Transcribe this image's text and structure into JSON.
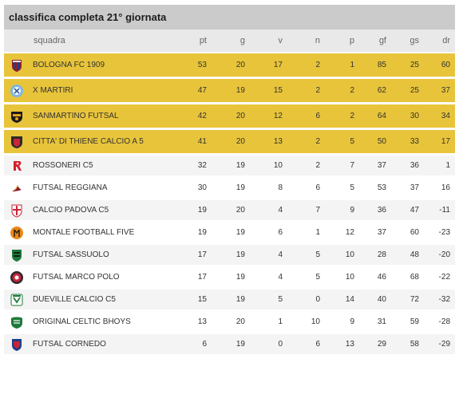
{
  "title": "classifica completa 21° giornata",
  "columns": {
    "squadra": "squadra",
    "pt": "pt",
    "g": "g",
    "v": "v",
    "n": "n",
    "p": "p",
    "gf": "gf",
    "gs": "gs",
    "dr": "dr"
  },
  "colors": {
    "highlight": "#e8c43a",
    "header": "#e9e9e9",
    "title_bar": "#cbcbcb"
  },
  "rows": [
    {
      "team": "BOLOGNA FC 1909",
      "pt": "53",
      "g": "20",
      "v": "17",
      "n": "2",
      "p": "1",
      "gf": "85",
      "gs": "25",
      "dr": "60",
      "logo": "bologna-crest-icon",
      "highlight": true
    },
    {
      "team": "X MARTIRI",
      "pt": "47",
      "g": "19",
      "v": "15",
      "n": "2",
      "p": "2",
      "gf": "62",
      "gs": "25",
      "dr": "37",
      "logo": "x-martiri-crest-icon",
      "highlight": true
    },
    {
      "team": "SANMARTINO FUTSAL",
      "pt": "42",
      "g": "20",
      "v": "12",
      "n": "6",
      "p": "2",
      "gf": "64",
      "gs": "30",
      "dr": "34",
      "logo": "sanmartino-crest-icon",
      "highlight": true
    },
    {
      "team": "CITTA' DI THIENE CALCIO A 5",
      "pt": "41",
      "g": "20",
      "v": "13",
      "n": "2",
      "p": "5",
      "gf": "50",
      "gs": "33",
      "dr": "17",
      "logo": "thiene-crest-icon",
      "highlight": true
    },
    {
      "team": "ROSSONERI C5",
      "pt": "32",
      "g": "19",
      "v": "10",
      "n": "2",
      "p": "7",
      "gf": "37",
      "gs": "36",
      "dr": "1",
      "logo": "rossoneri-crest-icon",
      "highlight": false
    },
    {
      "team": "FUTSAL REGGIANA",
      "pt": "30",
      "g": "19",
      "v": "8",
      "n": "6",
      "p": "5",
      "gf": "53",
      "gs": "37",
      "dr": "16",
      "logo": "reggiana-crest-icon",
      "highlight": false
    },
    {
      "team": "CALCIO PADOVA C5",
      "pt": "19",
      "g": "20",
      "v": "4",
      "n": "7",
      "p": "9",
      "gf": "36",
      "gs": "47",
      "dr": "-11",
      "logo": "padova-crest-icon",
      "highlight": false
    },
    {
      "team": "MONTALE FOOTBALL FIVE",
      "pt": "19",
      "g": "19",
      "v": "6",
      "n": "1",
      "p": "12",
      "gf": "37",
      "gs": "60",
      "dr": "-23",
      "logo": "montale-crest-icon",
      "highlight": false
    },
    {
      "team": "FUTSAL SASSUOLO",
      "pt": "17",
      "g": "19",
      "v": "4",
      "n": "5",
      "p": "10",
      "gf": "28",
      "gs": "48",
      "dr": "-20",
      "logo": "sassuolo-crest-icon",
      "highlight": false
    },
    {
      "team": "FUTSAL MARCO POLO",
      "pt": "17",
      "g": "19",
      "v": "4",
      "n": "5",
      "p": "10",
      "gf": "46",
      "gs": "68",
      "dr": "-22",
      "logo": "marco-polo-crest-icon",
      "highlight": false
    },
    {
      "team": "DUEVILLE CALCIO C5",
      "pt": "15",
      "g": "19",
      "v": "5",
      "n": "0",
      "p": "14",
      "gf": "40",
      "gs": "72",
      "dr": "-32",
      "logo": "dueville-crest-icon",
      "highlight": false
    },
    {
      "team": "ORIGINAL CELTIC BHOYS",
      "pt": "13",
      "g": "20",
      "v": "1",
      "n": "10",
      "p": "9",
      "gf": "31",
      "gs": "59",
      "dr": "-28",
      "logo": "celtic-bhoys-crest-icon",
      "highlight": false
    },
    {
      "team": "FUTSAL CORNEDO",
      "pt": "6",
      "g": "19",
      "v": "0",
      "n": "6",
      "p": "13",
      "gf": "29",
      "gs": "58",
      "dr": "-29",
      "logo": "cornedo-crest-icon",
      "highlight": false
    }
  ]
}
